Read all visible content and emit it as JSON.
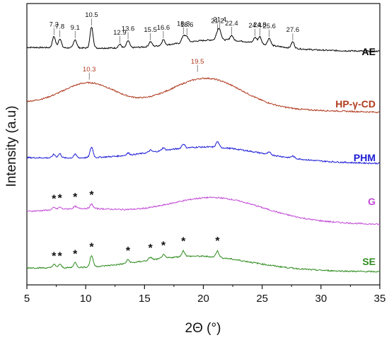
{
  "chart_data": {
    "type": "line",
    "xlabel": "2Θ (°)",
    "ylabel": "Intensity (a.u)",
    "xlim": [
      5,
      35
    ],
    "xticks": [
      5,
      10,
      15,
      20,
      25,
      30,
      35
    ],
    "grid": false,
    "legend": "series names printed at right end of each trace",
    "series": [
      {
        "name": "AE",
        "color": "#000000",
        "baseline": 5,
        "peaks": [
          {
            "x": 7.3,
            "h": 1.6,
            "label": "7.3"
          },
          {
            "x": 7.8,
            "h": 1.3,
            "label": "7.8"
          },
          {
            "x": 9.1,
            "h": 1.2,
            "label": "9.1"
          },
          {
            "x": 10.5,
            "h": 3.0,
            "label": "10.5"
          },
          {
            "x": 12.9,
            "h": 0.5,
            "label": "12.9"
          },
          {
            "x": 13.6,
            "h": 1.0,
            "label": "13.6"
          },
          {
            "x": 15.5,
            "h": 0.7,
            "label": "15.5"
          },
          {
            "x": 16.6,
            "h": 0.8,
            "label": "16.6"
          },
          {
            "x": 18.3,
            "h": 1.0,
            "label": "18.3"
          },
          {
            "x": 18.6,
            "h": 0.8,
            "label": "18.6"
          },
          {
            "x": 21.2,
            "h": 1.0,
            "label": "21.2"
          },
          {
            "x": 21.4,
            "h": 1.2,
            "label": "21.4"
          },
          {
            "x": 22.4,
            "h": 0.7,
            "label": "22.4"
          },
          {
            "x": 24.4,
            "h": 0.8,
            "label": "24.4"
          },
          {
            "x": 24.8,
            "h": 1.0,
            "label": "24.8"
          },
          {
            "x": 25.6,
            "h": 1.0,
            "label": "25.6"
          },
          {
            "x": 27.6,
            "h": 0.9,
            "label": "27.6"
          }
        ]
      },
      {
        "name": "HP-γ-CD",
        "color": "#b03a1e",
        "baseline": 4,
        "peaks": [
          {
            "x": 10.3,
            "h": 1.5,
            "label": "10.3"
          },
          {
            "x": 19.5,
            "h": 1.6,
            "label": "19.5"
          }
        ]
      },
      {
        "name": "PHM",
        "color": "#1a1ad6",
        "baseline": 3,
        "peaks": [
          {
            "x": 7.3,
            "h": 0.5
          },
          {
            "x": 7.8,
            "h": 0.6
          },
          {
            "x": 9.1,
            "h": 0.5
          },
          {
            "x": 10.5,
            "h": 1.5
          },
          {
            "x": 13.6,
            "h": 0.3
          },
          {
            "x": 15.5,
            "h": 0.3
          },
          {
            "x": 16.6,
            "h": 0.4
          },
          {
            "x": 18.3,
            "h": 0.6
          },
          {
            "x": 21.2,
            "h": 0.8
          },
          {
            "x": 25.6,
            "h": 0.3
          },
          {
            "x": 27.6,
            "h": 0.3
          }
        ]
      },
      {
        "name": "G",
        "color": "#c24bd6",
        "baseline": 2,
        "peaks": [
          {
            "x": 7.3,
            "h": 0.3,
            "star": "*"
          },
          {
            "x": 7.8,
            "h": 0.3,
            "star": "*"
          },
          {
            "x": 9.1,
            "h": 0.3,
            "star": "*"
          },
          {
            "x": 10.5,
            "h": 0.6,
            "star": "*"
          },
          {
            "x": 21.0,
            "h": 0.9
          }
        ]
      },
      {
        "name": "SE",
        "color": "#2e8b1e",
        "baseline": 1,
        "peaks": [
          {
            "x": 7.3,
            "h": 0.5,
            "star": "*"
          },
          {
            "x": 7.8,
            "h": 0.5,
            "star": "*"
          },
          {
            "x": 9.1,
            "h": 0.7,
            "star": "*"
          },
          {
            "x": 10.5,
            "h": 1.6,
            "star": "*"
          },
          {
            "x": 13.6,
            "h": 0.5,
            "star": "*"
          },
          {
            "x": 15.5,
            "h": 0.4,
            "star": "*"
          },
          {
            "x": 16.6,
            "h": 0.5,
            "star": "*"
          },
          {
            "x": 18.3,
            "h": 0.8,
            "star": "*"
          },
          {
            "x": 21.2,
            "h": 0.9,
            "star": "*"
          }
        ]
      }
    ]
  }
}
